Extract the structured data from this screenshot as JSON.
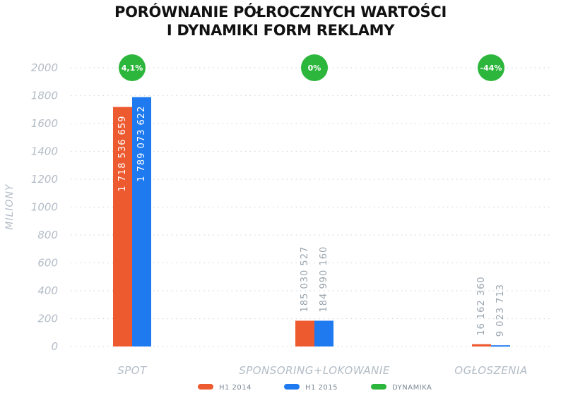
{
  "chart_data": {
    "type": "bar",
    "title_lines": [
      "PORÓWNANIE PÓŁROCZNYCH WARTOŚCI",
      "I DYNAMIKI FORM REKLAMY"
    ],
    "ylabel": "MILIONY",
    "ylim": [
      0,
      2000
    ],
    "yticks": [
      0,
      200,
      400,
      600,
      800,
      1000,
      1200,
      1400,
      1600,
      1800,
      2000
    ],
    "grid": true,
    "categories": [
      "SPOT",
      "SPONSORING+LOKOWANIE",
      "OGŁOSZENIA"
    ],
    "series": [
      {
        "name": "H1 2014",
        "color": "#ee5a2f",
        "values": [
          1718.536659,
          185.030527,
          16.16236
        ],
        "labels": [
          "1 718 536 659",
          "185 030 527",
          "16 162 360"
        ]
      },
      {
        "name": "H1 2015",
        "color": "#1f7af0",
        "values": [
          1789.073622,
          184.99016,
          9.023713
        ],
        "labels": [
          "1 789 073 622",
          "184 990 160",
          "9 023 713"
        ]
      }
    ],
    "dynamics": {
      "name": "DYNAMIKA",
      "color": "#2db63c",
      "values": [
        "4,1%",
        "0%",
        "-44%"
      ]
    },
    "legend_position": "bottom"
  }
}
